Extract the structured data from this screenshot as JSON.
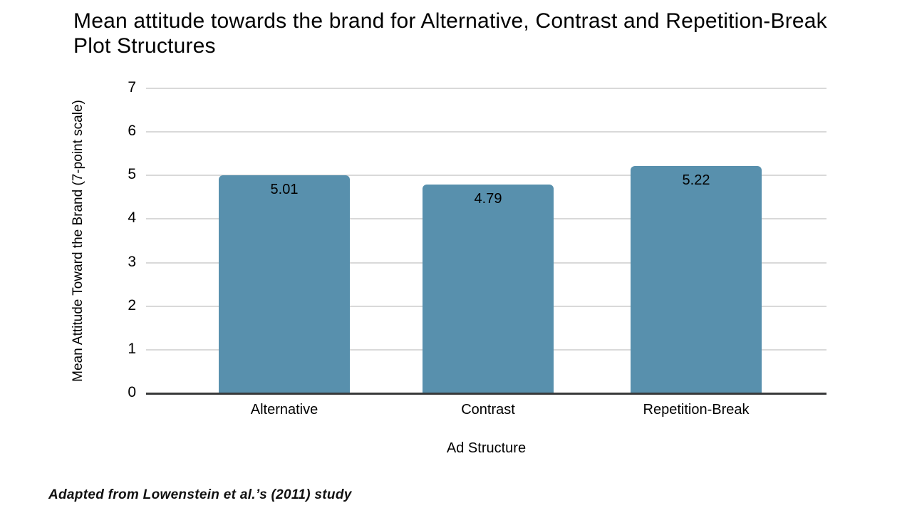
{
  "title": "Mean attitude towards the brand for Alternative, Contrast and Repetition-Break Plot Structures",
  "footer": "Adapted from Lowenstein et al.’s (2011) study",
  "chart_data": {
    "type": "bar",
    "title": "Mean attitude towards the brand for Alternative, Contrast and Repetition-Break Plot Structures",
    "categories": [
      "Alternative",
      "Contrast",
      "Repetition-Break"
    ],
    "values": [
      5.01,
      4.79,
      5.22
    ],
    "value_labels": [
      "5.01",
      "4.79",
      "5.22"
    ],
    "xlabel": "Ad Structure",
    "ylabel": "Mean Attitude Toward the Brand (7-point scale)",
    "ylim": [
      0,
      7
    ],
    "yticks": [
      0,
      1,
      2,
      3,
      4,
      5,
      6,
      7
    ],
    "grid": true,
    "legend": "none",
    "bar_color": "#5890ad",
    "gridline_color": "#d9d9d9",
    "axis_color": "#38393a",
    "text_color": "#000000",
    "background_color": "#ffffff"
  }
}
